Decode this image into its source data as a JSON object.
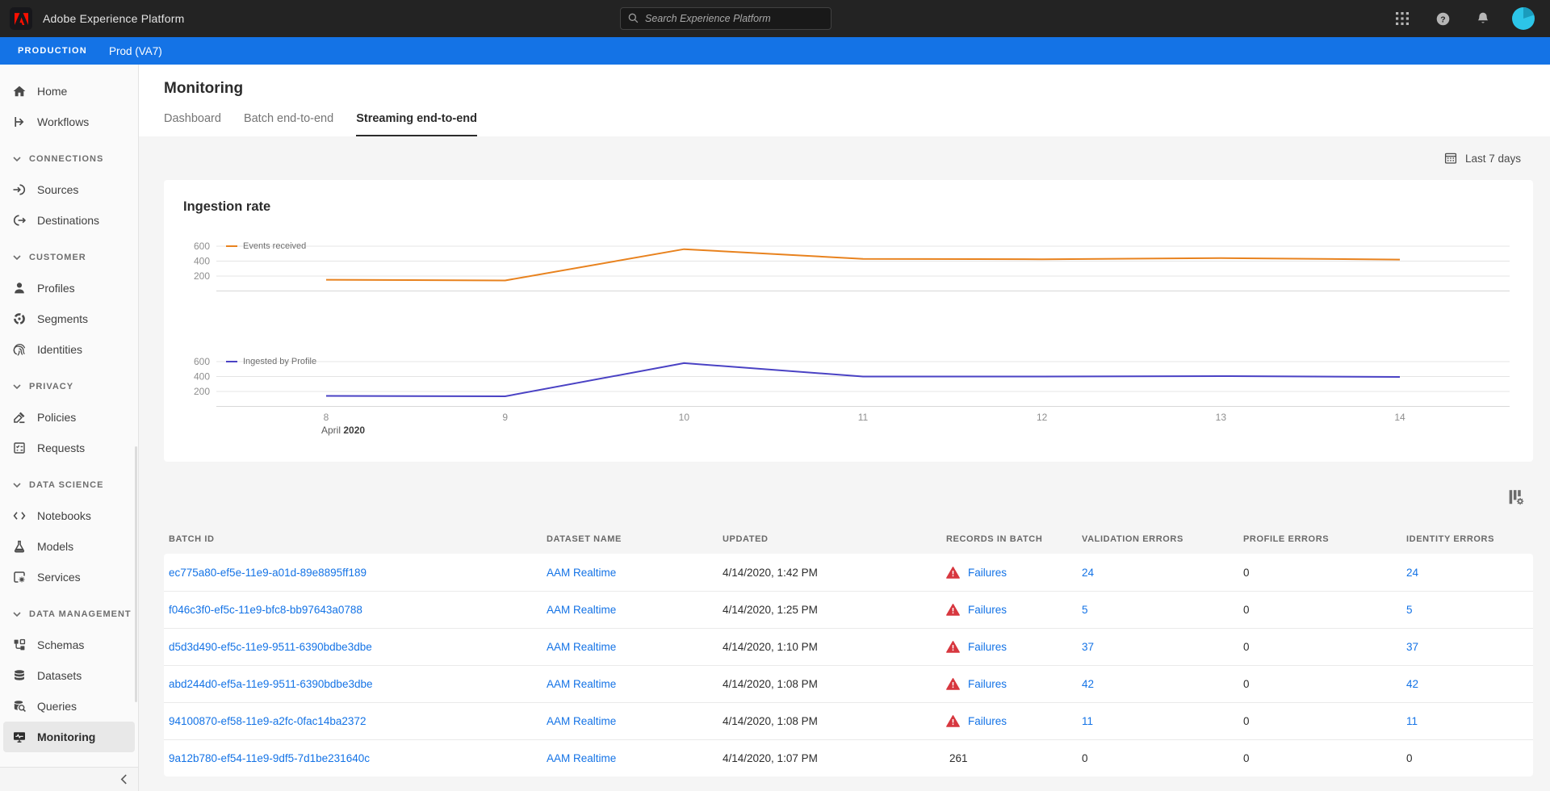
{
  "topbar": {
    "app_title": "Adobe Experience Platform",
    "search": {
      "placeholder": "Search Experience Platform"
    },
    "right_icons": [
      "apps-grid-icon",
      "help-icon",
      "notifications-bell-icon",
      "avatar"
    ]
  },
  "env_bar": {
    "badge": "PRODUCTION",
    "environment": "Prod (VA7)"
  },
  "sidebar": {
    "items": [
      {
        "type": "link",
        "label": "Home",
        "icon": "home-icon"
      },
      {
        "type": "link",
        "label": "Workflows",
        "icon": "workflows-icon"
      },
      {
        "type": "section",
        "label": "CONNECTIONS"
      },
      {
        "type": "link",
        "label": "Sources",
        "icon": "sources-icon"
      },
      {
        "type": "link",
        "label": "Destinations",
        "icon": "destinations-icon"
      },
      {
        "type": "section",
        "label": "CUSTOMER"
      },
      {
        "type": "link",
        "label": "Profiles",
        "icon": "profiles-icon"
      },
      {
        "type": "link",
        "label": "Segments",
        "icon": "segments-icon"
      },
      {
        "type": "link",
        "label": "Identities",
        "icon": "identities-icon"
      },
      {
        "type": "section",
        "label": "PRIVACY"
      },
      {
        "type": "link",
        "label": "Policies",
        "icon": "policies-icon"
      },
      {
        "type": "link",
        "label": "Requests",
        "icon": "requests-icon"
      },
      {
        "type": "section",
        "label": "DATA SCIENCE"
      },
      {
        "type": "link",
        "label": "Notebooks",
        "icon": "notebooks-icon"
      },
      {
        "type": "link",
        "label": "Models",
        "icon": "models-icon"
      },
      {
        "type": "link",
        "label": "Services",
        "icon": "services-icon"
      },
      {
        "type": "section",
        "label": "DATA MANAGEMENT"
      },
      {
        "type": "link",
        "label": "Schemas",
        "icon": "schemas-icon"
      },
      {
        "type": "link",
        "label": "Datasets",
        "icon": "datasets-icon"
      },
      {
        "type": "link",
        "label": "Queries",
        "icon": "queries-icon"
      },
      {
        "type": "link",
        "label": "Monitoring",
        "icon": "monitoring-icon",
        "selected": true
      }
    ]
  },
  "page": {
    "title": "Monitoring",
    "tabs": [
      {
        "label": "Dashboard",
        "active": false
      },
      {
        "label": "Batch end-to-end",
        "active": false
      },
      {
        "label": "Streaming end-to-end",
        "active": true
      }
    ],
    "date_range_label": "Last 7 days"
  },
  "chart_data": {
    "type": "line",
    "title": "Ingestion rate",
    "x": [
      8,
      9,
      10,
      11,
      12,
      13,
      14
    ],
    "x_axis_note": {
      "prefix": "April ",
      "bold": "2020"
    },
    "y_ticks": [
      200,
      400,
      600
    ],
    "ylim": [
      0,
      650
    ],
    "grid": true,
    "legend_position": "top-left-inside",
    "charts": [
      {
        "series": "Events received",
        "color": "#e8821e",
        "values": [
          150,
          140,
          560,
          430,
          425,
          440,
          420
        ]
      },
      {
        "series": "Ingested by Profile",
        "color": "#4a42c4",
        "values": [
          140,
          135,
          580,
          400,
          400,
          405,
          395
        ]
      }
    ]
  },
  "table": {
    "settings_icon": "column-settings-icon",
    "columns": [
      "BATCH ID",
      "DATASET NAME",
      "UPDATED",
      "RECORDS IN BATCH",
      "VALIDATION ERRORS",
      "PROFILE ERRORS",
      "IDENTITY ERRORS"
    ],
    "failures_label": "Failures",
    "rows": [
      {
        "batch_id": "ec775a80-ef5e-11e9-a01d-89e8895ff189",
        "dataset_name": "AAM Realtime",
        "updated": "4/14/2020, 1:42 PM",
        "records_in_batch": "Failures",
        "records_failed": true,
        "validation_errors": "24",
        "profile_errors": "0",
        "identity_errors": "24"
      },
      {
        "batch_id": "f046c3f0-ef5c-11e9-bfc8-bb97643a0788",
        "dataset_name": "AAM Realtime",
        "updated": "4/14/2020, 1:25 PM",
        "records_in_batch": "Failures",
        "records_failed": true,
        "validation_errors": "5",
        "profile_errors": "0",
        "identity_errors": "5"
      },
      {
        "batch_id": "d5d3d490-ef5c-11e9-9511-6390bdbe3dbe",
        "dataset_name": "AAM Realtime",
        "updated": "4/14/2020, 1:10 PM",
        "records_in_batch": "Failures",
        "records_failed": true,
        "validation_errors": "37",
        "profile_errors": "0",
        "identity_errors": "37"
      },
      {
        "batch_id": "abd244d0-ef5a-11e9-9511-6390bdbe3dbe",
        "dataset_name": "AAM Realtime",
        "updated": "4/14/2020, 1:08 PM",
        "records_in_batch": "Failures",
        "records_failed": true,
        "validation_errors": "42",
        "profile_errors": "0",
        "identity_errors": "42"
      },
      {
        "batch_id": "94100870-ef58-11e9-a2fc-0fac14ba2372",
        "dataset_name": "AAM Realtime",
        "updated": "4/14/2020, 1:08 PM",
        "records_in_batch": "Failures",
        "records_failed": true,
        "validation_errors": "11",
        "profile_errors": "0",
        "identity_errors": "11"
      },
      {
        "batch_id": "9a12b780-ef54-11e9-9df5-7d1be231640c",
        "dataset_name": "AAM Realtime",
        "updated": "4/14/2020, 1:07 PM",
        "records_in_batch": "261",
        "records_failed": false,
        "validation_errors": "0",
        "profile_errors": "0",
        "identity_errors": "0"
      }
    ]
  },
  "colors": {
    "accent_blue": "#1473e6",
    "link_blue": "#1473e6",
    "error_red": "#d7373f",
    "series_orange": "#e8821e",
    "series_indigo": "#4a42c4"
  }
}
